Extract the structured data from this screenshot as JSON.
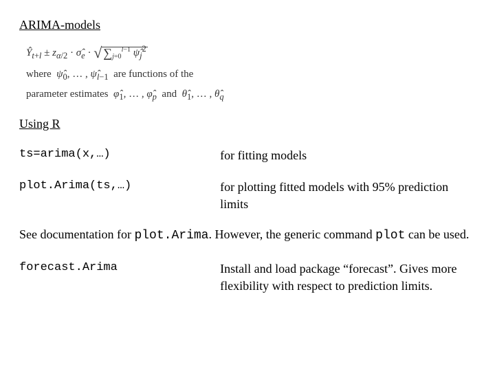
{
  "headings": {
    "arima": "ARIMA-models",
    "usingR": "Using R"
  },
  "formula": {
    "line1_html": "<i>Ŷ</i><sub><i>t</i>+<i>l</i></sub> ± <i>z</i><sub><i>α</i>/2</sub> · <i>σ̂</i><sub><i>e</i></sub> · <span class='sq'>√</span><span style='border-top:1px solid #444; padding:0 2px;'><span class='sum-sym'>∑</span><sub style='font-size:10px;'><i>j</i>=0</sub><sup style='font-size:10px;'><i>l</i>−1</sup> <i>ψ̂</i><sub><i>j</i></sub><sup>2</sup></span>",
    "line2_html": "where&nbsp; <i>ψ̂</i><sub>0</sub>, … , <i>ψ̂</i><sub><i>l</i>−1</sub>&nbsp; are functions of the",
    "line3_html": "parameter estimates&nbsp; <i>φ̂</i><sub>1</sub>, … , <i>φ̂</i><sub><i>p</i></sub>&nbsp; and&nbsp; <i>θ̂</i><sub>1</sub>, … , <i>θ̂</i><sub><i>q</i></sub>"
  },
  "commands": [
    {
      "cmd": "ts=arima(x,…)",
      "desc": "for fitting models"
    },
    {
      "cmd": "plot.Arima(ts,…)",
      "desc": "for plotting fitted models with 95% prediction limits"
    }
  ],
  "midpara": {
    "pre": "See documentation for ",
    "code1": "plot.Arima",
    "mid": ". However, the generic command ",
    "code2": "plot",
    "post": " can be used."
  },
  "commands2": [
    {
      "cmd": "forecast.Arima",
      "desc": "Install and load package “forecast”. Gives more flexibility with respect to  prediction limits."
    }
  ]
}
